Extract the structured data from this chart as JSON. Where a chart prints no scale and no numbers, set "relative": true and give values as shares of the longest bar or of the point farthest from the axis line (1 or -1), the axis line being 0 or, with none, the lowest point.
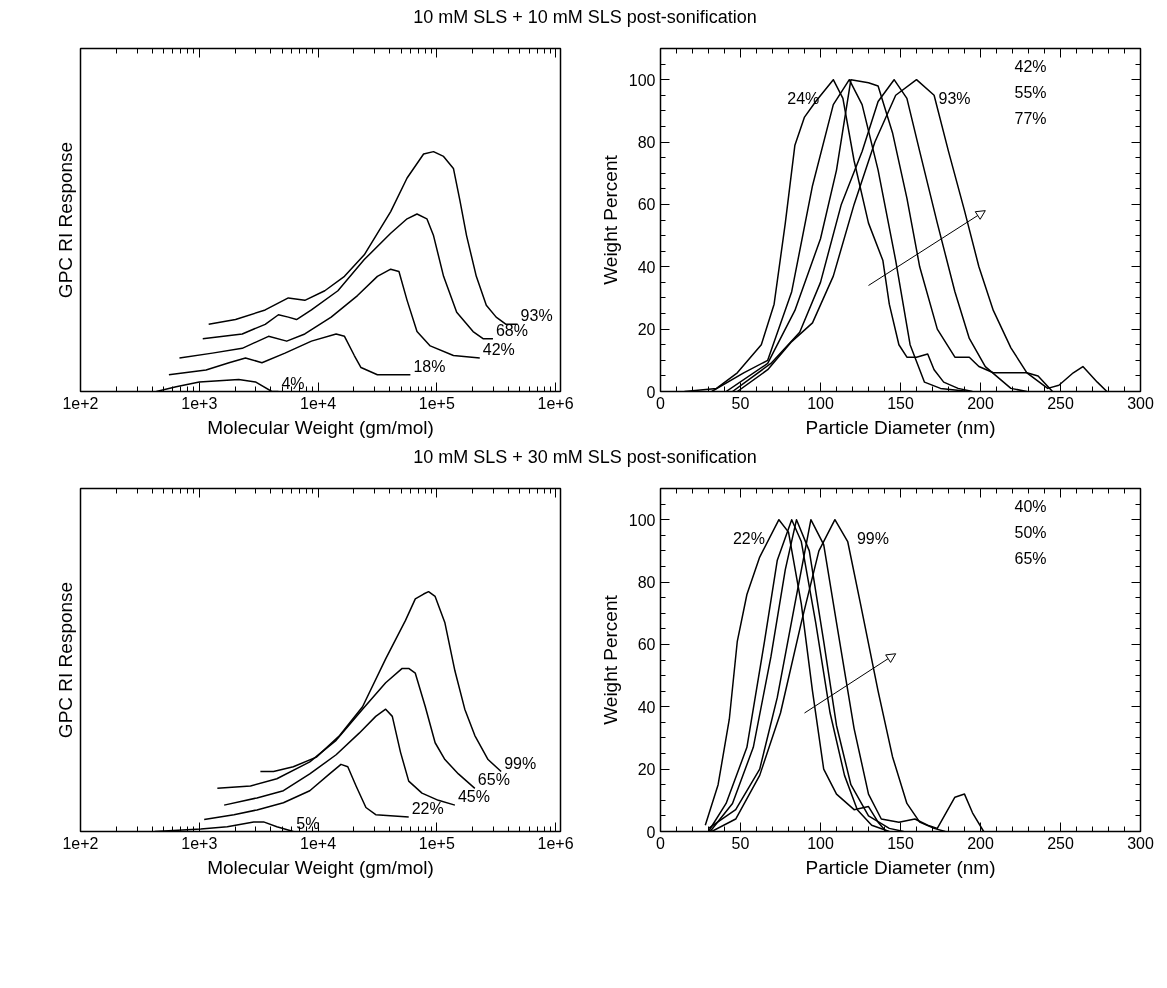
{
  "chart_data": [
    {
      "type": "line",
      "title": "10 mM SLS + 10 mM SLS post-sonification",
      "xlabel": "Molecular Weight (gm/mol)",
      "ylabel": "GPC RI Response",
      "log": "x",
      "relative": true,
      "tick_labels": "x",
      "grid": false,
      "xlim": [
        100,
        1100000
      ],
      "xticks": [
        {
          "value": 100,
          "label": "1e+2"
        },
        {
          "value": 1000,
          "label": "1e+3"
        },
        {
          "value": 10000,
          "label": "1e+4"
        },
        {
          "value": 100000,
          "label": "1e+5"
        },
        {
          "value": 1000000,
          "label": "1e+6"
        }
      ],
      "series": [
        {
          "name": "4%",
          "color": "#000000",
          "x": [
            435,
            639,
            1000,
            2150,
            2970,
            4080,
            4640
          ],
          "values": [
            0,
            0.02,
            0.04,
            0.05,
            0.04,
            0.0,
            0
          ]
        },
        {
          "name": "18%",
          "color": "#000000",
          "x": [
            555,
            1140,
            1780,
            2450,
            3370,
            5270,
            8800,
            14200,
            16700,
            20200,
            23000,
            31600,
            59900
          ],
          "values": [
            0.07,
            0.09,
            0.12,
            0.14,
            0.12,
            0.16,
            0.21,
            0.24,
            0.23,
            0.15,
            0.1,
            0.07,
            0.07
          ]
        },
        {
          "name": "42%",
          "color": "#000000",
          "x": [
            681,
            1290,
            2300,
            3830,
            5450,
            7740,
            12900,
            21500,
            31600,
            40900,
            48000,
            56200,
            68100,
            88000,
            138000,
            230000
          ],
          "values": [
            0.14,
            0.16,
            0.18,
            0.23,
            0.21,
            0.24,
            0.31,
            0.4,
            0.48,
            0.51,
            0.5,
            0.38,
            0.25,
            0.19,
            0.15,
            0.14
          ]
        },
        {
          "name": "68%",
          "color": "#000000",
          "x": [
            1070,
            2300,
            3590,
            4640,
            5620,
            6590,
            8800,
            14700,
            24500,
            40900,
            56200,
            68100,
            82500,
            93800,
            114000,
            147000,
            202000,
            245000,
            297000
          ],
          "values": [
            0.22,
            0.24,
            0.28,
            0.32,
            0.31,
            0.3,
            0.34,
            0.42,
            0.55,
            0.66,
            0.72,
            0.74,
            0.72,
            0.65,
            0.48,
            0.33,
            0.25,
            0.22,
            0.22
          ]
        },
        {
          "name": "93%",
          "color": "#000000",
          "x": [
            1200,
            2020,
            3590,
            5620,
            7740,
            11400,
            16700,
            24500,
            40900,
            56200,
            77400,
            93800,
            114000,
            138000,
            156000,
            178000,
            215000,
            261000,
            316000,
            383000,
            479000
          ],
          "values": [
            0.28,
            0.3,
            0.34,
            0.39,
            0.38,
            0.42,
            0.48,
            0.57,
            0.75,
            0.89,
            0.99,
            1.0,
            0.98,
            0.93,
            0.8,
            0.65,
            0.48,
            0.36,
            0.31,
            0.28,
            0.28
          ]
        }
      ]
    },
    {
      "type": "line",
      "xlabel": "Particle Diameter (nm)",
      "ylabel": "Weight Percent",
      "grid": false,
      "xlim": [
        0,
        300
      ],
      "ylim": [
        0,
        110
      ],
      "xticks": [
        0,
        50,
        100,
        150,
        200,
        250,
        300
      ],
      "yticks": [
        0,
        20,
        40,
        60,
        80,
        100
      ],
      "annotations": [
        "42%",
        "55%",
        "77%"
      ],
      "series": [
        {
          "name": "24%",
          "color": "#000000",
          "x": [
            15,
            35,
            48,
            63,
            71,
            78,
            84,
            90,
            97,
            108,
            114,
            121,
            130,
            139,
            143,
            149,
            154,
            160,
            167,
            171,
            177,
            186,
            195
          ],
          "values": [
            0,
            1,
            6,
            15,
            28,
            54,
            79,
            88,
            93,
            100,
            94,
            74,
            54,
            42,
            28,
            15,
            11,
            11,
            12,
            7,
            3,
            1,
            0
          ]
        },
        {
          "color": "#000000",
          "x": [
            32,
            52,
            67,
            82,
            95,
            108,
            118,
            126,
            136,
            147,
            156,
            165,
            175,
            193
          ],
          "values": [
            0,
            6,
            10,
            32,
            66,
            92,
            100,
            92,
            71,
            42,
            15,
            3,
            1,
            0
          ]
        },
        {
          "color": "#000000",
          "x": [
            41,
            67,
            84,
            100,
            110,
            119,
            130,
            136,
            145,
            154,
            162,
            173,
            184,
            193,
            199,
            208,
            219,
            229,
            236,
            245
          ],
          "values": [
            0,
            9,
            26,
            49,
            71,
            100,
            99,
            98,
            83,
            62,
            40,
            20,
            11,
            11,
            8,
            6,
            6,
            6,
            5,
            0
          ]
        },
        {
          "color": "#000000",
          "x": [
            45,
            69,
            87,
            100,
            113,
            126,
            136,
            146,
            154,
            162,
            173,
            184,
            193,
            203,
            219,
            229
          ],
          "values": [
            0,
            9,
            19,
            35,
            60,
            77,
            93,
            100,
            94,
            77,
            54,
            32,
            17,
            8,
            1,
            0
          ]
        },
        {
          "name": "93%",
          "color": "#000000",
          "x": [
            48,
            67,
            82,
            95,
            108,
            121,
            134,
            147,
            160,
            171,
            180,
            190,
            199,
            208,
            219,
            229,
            242,
            249,
            258,
            264,
            273,
            279
          ],
          "values": [
            0,
            7,
            16,
            22,
            37,
            60,
            80,
            95,
            100,
            95,
            77,
            58,
            40,
            26,
            14,
            6,
            1,
            2,
            6,
            8,
            3,
            0
          ]
        }
      ]
    },
    {
      "type": "line",
      "title": "10 mM SLS + 30 mM SLS post-sonification",
      "xlabel": "Molecular Weight (gm/mol)",
      "ylabel": "GPC RI Response",
      "log": "x",
      "relative": true,
      "tick_labels": "x",
      "grid": false,
      "xlim": [
        100,
        1100000
      ],
      "xticks": [
        {
          "value": 100,
          "label": "1e+2"
        },
        {
          "value": 1000,
          "label": "1e+3"
        },
        {
          "value": 10000,
          "label": "1e+4"
        },
        {
          "value": 100000,
          "label": "1e+5"
        },
        {
          "value": 1000000,
          "label": "1e+6"
        }
      ],
      "series": [
        {
          "name": "5%",
          "color": "#000000",
          "x": [
            422,
            1030,
            1720,
            2870,
            3480,
            4500,
            6190
          ],
          "values": [
            0,
            0.01,
            0.02,
            0.04,
            0.04,
            0.02,
            0
          ]
        },
        {
          "name": "22%",
          "color": "#000000",
          "x": [
            1100,
            1960,
            3060,
            5110,
            8520,
            12500,
            15600,
            17800,
            20900,
            25300,
            30600,
            58000
          ],
          "values": [
            0.05,
            0.07,
            0.09,
            0.12,
            0.17,
            0.24,
            0.28,
            0.27,
            0.19,
            0.1,
            0.07,
            0.06
          ]
        },
        {
          "name": "45%",
          "color": "#000000",
          "x": [
            1620,
            3060,
            5110,
            8520,
            14200,
            22200,
            30600,
            37100,
            42200,
            49500,
            58000,
            75000,
            103000,
            142000
          ],
          "values": [
            0.11,
            0.14,
            0.17,
            0.24,
            0.32,
            0.41,
            0.48,
            0.51,
            0.48,
            0.33,
            0.21,
            0.16,
            0.13,
            0.11
          ]
        },
        {
          "name": "65%",
          "color": "#000000",
          "x": [
            1420,
            2700,
            4500,
            8520,
            14200,
            23700,
            37100,
            51100,
            58000,
            65900,
            80000,
            96800,
            117000,
            152000,
            209000
          ],
          "values": [
            0.18,
            0.19,
            0.22,
            0.29,
            0.38,
            0.51,
            0.62,
            0.68,
            0.68,
            0.66,
            0.52,
            0.37,
            0.3,
            0.24,
            0.18
          ]
        },
        {
          "name": "99%",
          "color": "#000000",
          "x": [
            3270,
            4220,
            6190,
            9680,
            15200,
            23700,
            37100,
            54500,
            65900,
            77400,
            85200,
            96800,
            117000,
            142000,
            172000,
            209000,
            270000,
            348000
          ],
          "values": [
            0.25,
            0.25,
            0.27,
            0.31,
            0.4,
            0.52,
            0.72,
            0.88,
            0.97,
            0.99,
            1.0,
            0.98,
            0.87,
            0.67,
            0.51,
            0.4,
            0.3,
            0.25
          ]
        }
      ]
    },
    {
      "type": "line",
      "xlabel": "Particle Diameter (nm)",
      "ylabel": "Weight Percent",
      "grid": false,
      "xlim": [
        0,
        300
      ],
      "ylim": [
        0,
        110
      ],
      "xticks": [
        0,
        50,
        100,
        150,
        200,
        250,
        300
      ],
      "yticks": [
        0,
        20,
        40,
        60,
        80,
        100
      ],
      "annotations": [
        "40%",
        "50%",
        "65%"
      ],
      "series": [
        {
          "name": "22%",
          "color": "#000000",
          "x": [
            28,
            36,
            43,
            48,
            54,
            62,
            74,
            80,
            88,
            95,
            102,
            110,
            121,
            130,
            136,
            141
          ],
          "values": [
            2,
            15,
            36,
            61,
            76,
            88,
            100,
            96,
            73,
            45,
            20,
            12,
            7,
            8,
            3,
            0
          ]
        },
        {
          "color": "#000000",
          "x": [
            30,
            41,
            54,
            65,
            73,
            82,
            88,
            97,
            106,
            115,
            123,
            132,
            143
          ],
          "values": [
            0,
            9,
            27,
            61,
            87,
            100,
            93,
            67,
            38,
            18,
            7,
            2,
            0
          ]
        },
        {
          "color": "#000000",
          "x": [
            31,
            45,
            58,
            69,
            78,
            85,
            93,
            102,
            110,
            119,
            130,
            143,
            152
          ],
          "values": [
            0,
            9,
            27,
            56,
            84,
            100,
            90,
            61,
            34,
            15,
            5,
            1,
            0
          ]
        },
        {
          "color": "#000000",
          "x": [
            30,
            47,
            62,
            73,
            84,
            94,
            102,
            110,
            121,
            130,
            138,
            149,
            159,
            167,
            173,
            184,
            190,
            195,
            202
          ],
          "values": [
            1,
            7,
            20,
            43,
            73,
            100,
            92,
            67,
            33,
            12,
            4,
            3,
            4,
            2,
            1,
            11,
            12,
            6,
            0
          ]
        },
        {
          "name": "99%",
          "color": "#000000",
          "x": [
            32,
            47,
            62,
            75,
            88,
            99,
            109,
            117,
            125,
            136,
            145,
            154,
            162,
            171,
            178
          ],
          "values": [
            0,
            4,
            18,
            38,
            67,
            90,
            100,
            93,
            73,
            45,
            24,
            9,
            3,
            1,
            0
          ]
        }
      ]
    }
  ]
}
